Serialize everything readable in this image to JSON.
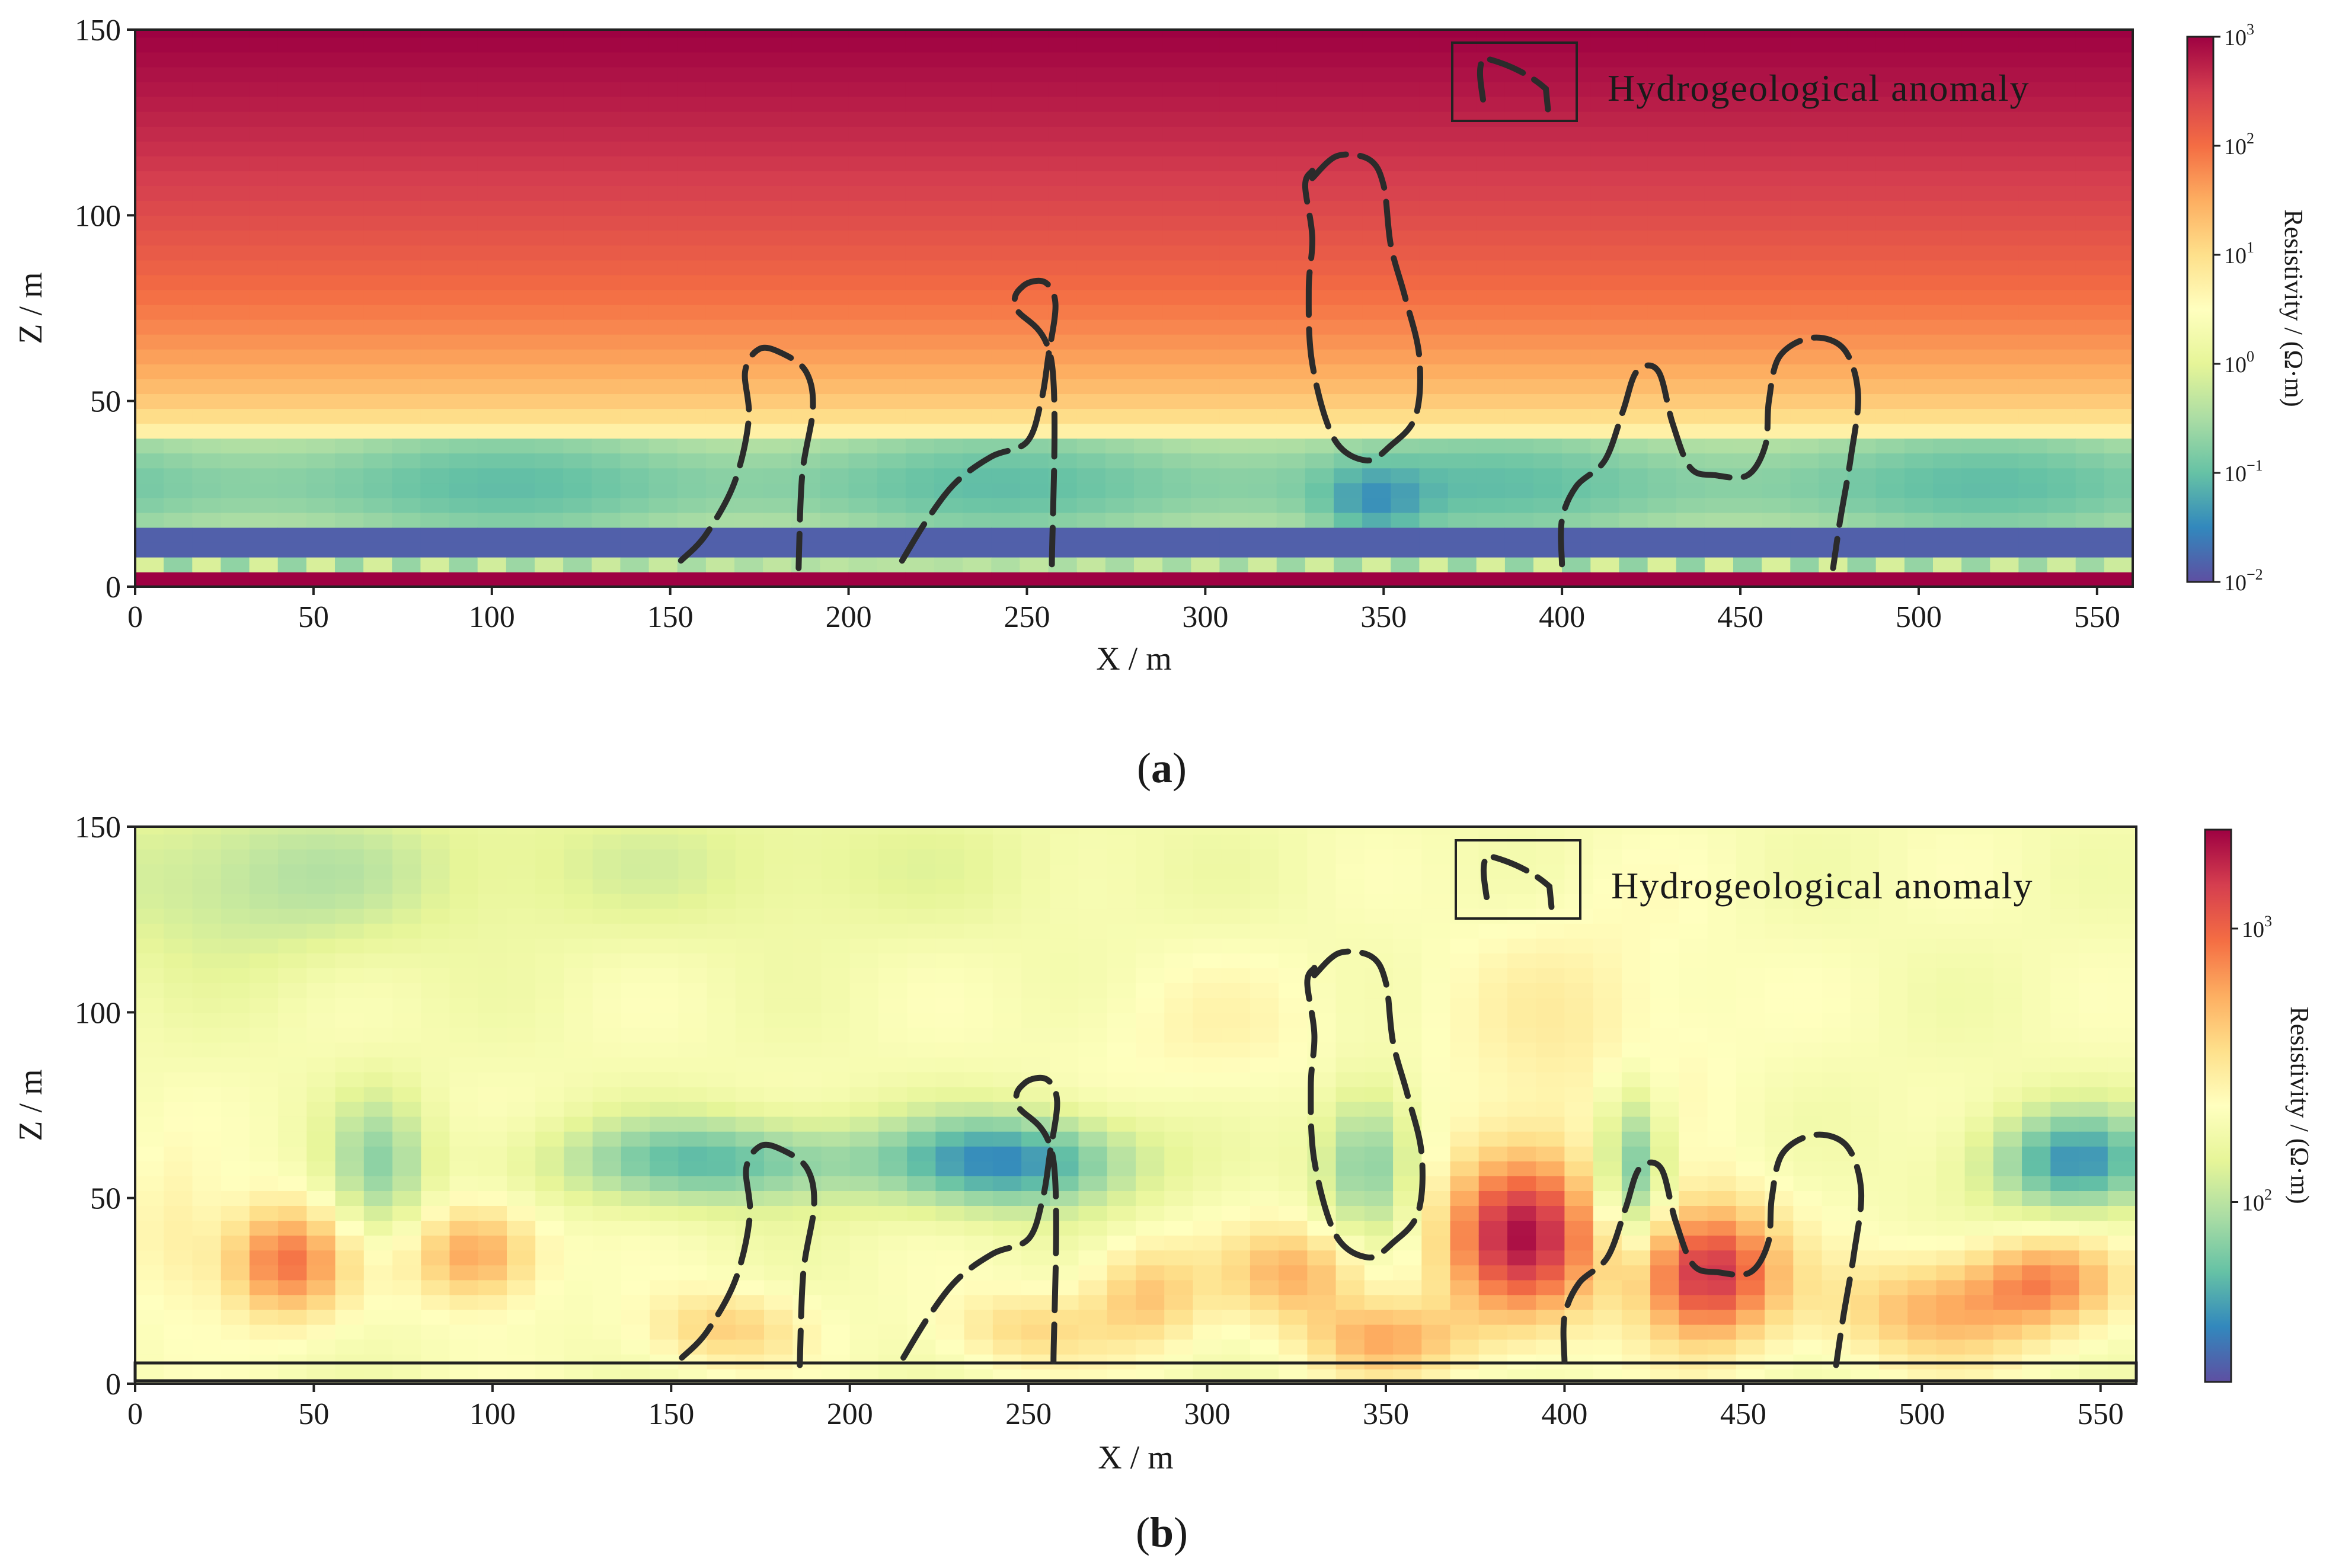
{
  "chart_data": [
    {
      "panel": "a",
      "type": "heatmap",
      "panel_label": "(a)",
      "xlabel": "X / m",
      "ylabel": "Z / m",
      "xlim": [
        0,
        560
      ],
      "ylim": [
        0,
        150
      ],
      "xticks": [
        0,
        50,
        100,
        150,
        200,
        250,
        300,
        350,
        400,
        450,
        500,
        550
      ],
      "yticks": [
        0,
        50,
        100,
        150
      ],
      "colorbar": {
        "label": "Resistivity / (Ω·m)",
        "scale": "log",
        "range": [
          0.01,
          1000
        ],
        "ticks": [
          {
            "base": "10",
            "exp": "−2",
            "value": 0.01
          },
          {
            "base": "10",
            "exp": "−1",
            "value": 0.1
          },
          {
            "base": "10",
            "exp": "0",
            "value": 1
          },
          {
            "base": "10",
            "exp": "1",
            "value": 10
          },
          {
            "base": "10",
            "exp": "2",
            "value": 100
          },
          {
            "base": "10",
            "exp": "3",
            "value": 1000
          }
        ],
        "colormap": [
          "#5e4fa2",
          "#3288bd",
          "#66c2a5",
          "#abdda4",
          "#e6f598",
          "#ffffbf",
          "#fee08b",
          "#fdae61",
          "#f46d43",
          "#d53e4f",
          "#9e0142"
        ]
      },
      "legend": {
        "label": "Hydrogeological anomaly",
        "position": "top-right"
      },
      "description_layers": [
        {
          "z_range": [
            0,
            5
          ],
          "resistivity": 1000
        },
        {
          "z_range": [
            5,
            10
          ],
          "resistivity": 0.15
        },
        {
          "z_range": [
            10,
            15
          ],
          "resistivity": 0.012
        }
      ]
    },
    {
      "panel": "b",
      "type": "heatmap",
      "panel_label": "(b)",
      "xlabel": "X / m",
      "ylabel": "Z / m",
      "xlim": [
        0,
        560
      ],
      "ylim": [
        0,
        150
      ],
      "xticks": [
        0,
        50,
        100,
        150,
        200,
        250,
        300,
        350,
        400,
        450,
        500,
        550
      ],
      "yticks": [
        0,
        50,
        100,
        150
      ],
      "colorbar": {
        "label": "Resistivity / (Ω·m)",
        "scale": "log",
        "range": [
          22,
          2300
        ],
        "ticks": [
          {
            "base": "10",
            "exp": "2",
            "value": 100
          },
          {
            "base": "10",
            "exp": "3",
            "value": 1000
          }
        ],
        "colormap": [
          "#5e4fa2",
          "#3288bd",
          "#66c2a5",
          "#abdda4",
          "#e6f598",
          "#ffffbf",
          "#fee08b",
          "#fdae61",
          "#f46d43",
          "#d53e4f",
          "#9e0142"
        ]
      },
      "legend": {
        "label": "Hydrogeological anomaly",
        "position": "top-right"
      }
    }
  ],
  "anomalies": [
    {
      "id": "A1",
      "points": [
        [
          153,
          7
        ],
        [
          160,
          14
        ],
        [
          168,
          28
        ],
        [
          172,
          45
        ],
        [
          171,
          58
        ],
        [
          175,
          64
        ],
        [
          181,
          63
        ],
        [
          188,
          58
        ],
        [
          190,
          48
        ],
        [
          187,
          30
        ],
        [
          186,
          5
        ]
      ]
    },
    {
      "id": "A2",
      "points": [
        [
          215,
          7
        ],
        [
          222,
          18
        ],
        [
          230,
          28
        ],
        [
          240,
          35
        ],
        [
          250,
          39
        ],
        [
          254,
          50
        ],
        [
          256,
          62
        ],
        [
          258,
          76
        ],
        [
          255,
          82
        ],
        [
          249,
          81
        ],
        [
          247,
          75
        ],
        [
          257,
          60
        ],
        [
          257,
          6
        ]
      ]
    },
    {
      "id": "A3",
      "points": [
        [
          330,
          110
        ],
        [
          337,
          116
        ],
        [
          346,
          115
        ],
        [
          350,
          108
        ],
        [
          352,
          92
        ],
        [
          356,
          78
        ],
        [
          360,
          62
        ],
        [
          359,
          46
        ],
        [
          352,
          38
        ],
        [
          345,
          34
        ],
        [
          336,
          40
        ],
        [
          330,
          60
        ],
        [
          329,
          80
        ],
        [
          330,
          94
        ],
        [
          328,
          108
        ],
        [
          330,
          112
        ]
      ]
    },
    {
      "id": "A4",
      "points": [
        [
          400,
          6
        ],
        [
          400,
          18
        ],
        [
          404,
          27
        ],
        [
          412,
          34
        ],
        [
          417,
          47
        ],
        [
          421,
          58
        ],
        [
          427,
          58
        ],
        [
          431,
          44
        ],
        [
          436,
          32
        ],
        [
          443,
          30
        ],
        [
          452,
          30
        ],
        [
          457,
          38
        ],
        [
          458,
          50
        ],
        [
          461,
          62
        ],
        [
          470,
          67
        ],
        [
          479,
          64
        ],
        [
          483,
          52
        ],
        [
          481,
          35
        ],
        [
          478,
          18
        ],
        [
          476,
          5
        ]
      ]
    }
  ]
}
